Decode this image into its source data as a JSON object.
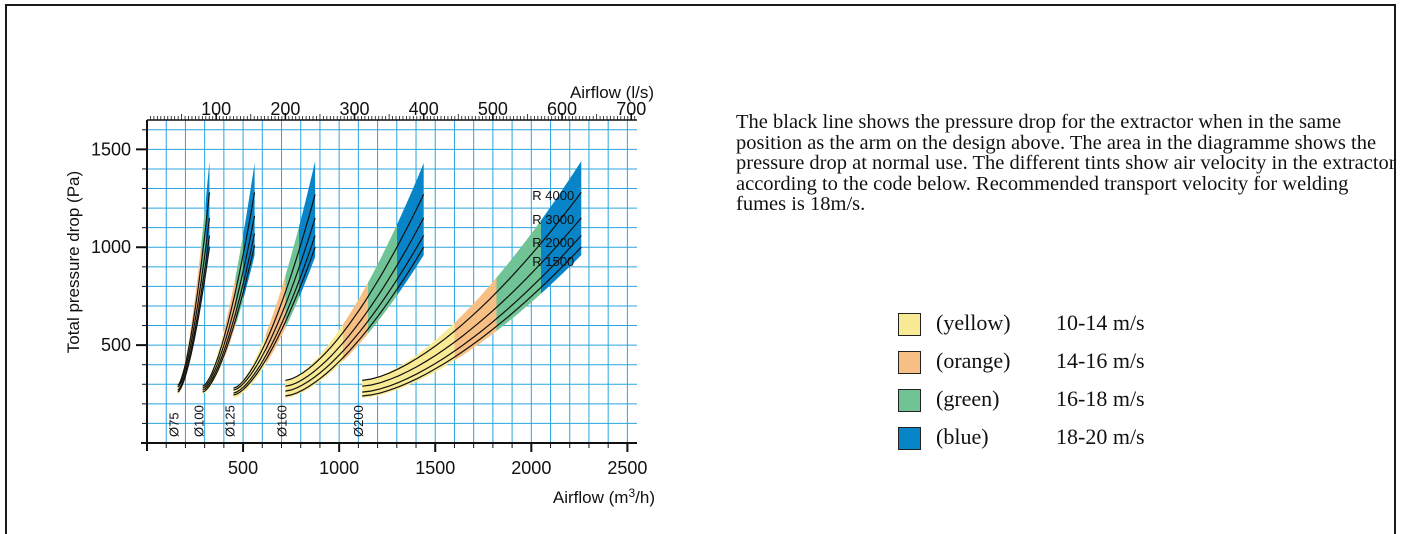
{
  "chart_data": {
    "type": "line",
    "title": "",
    "xlabel": "Airflow (m³/h)",
    "ylabel": "Total pressure drop (Pa)",
    "x2label": "Airflow (l/s)",
    "xlim": [
      0,
      2550
    ],
    "ylim": [
      0,
      1650
    ],
    "x2lim": [
      0,
      708.33
    ],
    "xticks": [
      500,
      1000,
      1500,
      2000,
      2500
    ],
    "yticks": [
      500,
      1000,
      1500
    ],
    "x2ticks": [
      100,
      200,
      300,
      400,
      500,
      600,
      700
    ],
    "grid": true,
    "curve_labels": [
      "R 4000",
      "R 3000",
      "R 2000",
      "R 1500"
    ],
    "velocity_colors": {
      "yellow": "#f9eb96",
      "orange": "#f8bf85",
      "green": "#6fc394",
      "blue": "#0885c8"
    },
    "ducts": [
      {
        "label": "Ø75",
        "x_start": 160,
        "x_end": 325,
        "band": {
          "x": [
            160,
            325
          ],
          "lower": [
            250,
            1000
          ],
          "upper": [
            300,
            1440
          ]
        },
        "color_stops": [
          {
            "x": 225,
            "color": "yellow"
          },
          {
            "x": 283,
            "color": "orange"
          },
          {
            "x": 306,
            "color": "green"
          },
          {
            "x": 325,
            "color": "blue"
          }
        ],
        "series": [
          {
            "name": "R 4000",
            "values": [
              [
                160,
                295
              ],
              [
                325,
                1280
              ]
            ]
          },
          {
            "name": "R 3000",
            "values": [
              [
                160,
                285
              ],
              [
                325,
                1150
              ]
            ]
          },
          {
            "name": "R 2000",
            "values": [
              [
                160,
                270
              ],
              [
                325,
                1060
              ]
            ]
          },
          {
            "name": "R 1500",
            "values": [
              [
                160,
                260
              ],
              [
                325,
                1000
              ]
            ]
          }
        ]
      },
      {
        "label": "Ø100",
        "x_start": 290,
        "x_end": 560,
        "band": {
          "x": [
            290,
            560
          ],
          "lower": [
            250,
            960
          ],
          "upper": [
            290,
            1430
          ]
        },
        "color_stops": [
          {
            "x": 400,
            "color": "yellow"
          },
          {
            "x": 460,
            "color": "orange"
          },
          {
            "x": 500,
            "color": "green"
          },
          {
            "x": 560,
            "color": "blue"
          }
        ],
        "series": [
          {
            "name": "R 4000",
            "values": [
              [
                290,
                290
              ],
              [
                560,
                1280
              ]
            ]
          },
          {
            "name": "R 3000",
            "values": [
              [
                290,
                280
              ],
              [
                560,
                1160
              ]
            ]
          },
          {
            "name": "R 2000",
            "values": [
              [
                290,
                270
              ],
              [
                560,
                1070
              ]
            ]
          },
          {
            "name": "R 1500",
            "values": [
              [
                290,
                260
              ],
              [
                560,
                1010
              ]
            ]
          }
        ]
      },
      {
        "label": "Ø125",
        "x_start": 450,
        "x_end": 875,
        "band": {
          "x": [
            450,
            875
          ],
          "lower": [
            230,
            950
          ],
          "upper": [
            280,
            1440
          ]
        },
        "color_stops": [
          {
            "x": 620,
            "color": "yellow"
          },
          {
            "x": 720,
            "color": "orange"
          },
          {
            "x": 790,
            "color": "green"
          },
          {
            "x": 875,
            "color": "blue"
          }
        ],
        "series": [
          {
            "name": "R 4000",
            "values": [
              [
                450,
                280
              ],
              [
                875,
                1270
              ]
            ]
          },
          {
            "name": "R 3000",
            "values": [
              [
                450,
                270
              ],
              [
                875,
                1150
              ]
            ]
          },
          {
            "name": "R 2000",
            "values": [
              [
                450,
                255
              ],
              [
                875,
                1060
              ]
            ]
          },
          {
            "name": "R 1500",
            "values": [
              [
                450,
                245
              ],
              [
                875,
                1000
              ]
            ]
          }
        ]
      },
      {
        "label": "Ø160",
        "x_start": 720,
        "x_end": 1440,
        "band": {
          "x": [
            720,
            1440
          ],
          "lower": [
            230,
            960
          ],
          "upper": [
            320,
            1430
          ]
        },
        "color_stops": [
          {
            "x": 1020,
            "color": "yellow"
          },
          {
            "x": 1150,
            "color": "orange"
          },
          {
            "x": 1300,
            "color": "green"
          },
          {
            "x": 1440,
            "color": "blue"
          }
        ],
        "series": [
          {
            "name": "R 4000",
            "values": [
              [
                720,
                320
              ],
              [
                1440,
                1270
              ]
            ]
          },
          {
            "name": "R 3000",
            "values": [
              [
                720,
                290
              ],
              [
                1440,
                1150
              ]
            ]
          },
          {
            "name": "R 2000",
            "values": [
              [
                720,
                265
              ],
              [
                1440,
                1060
              ]
            ]
          },
          {
            "name": "R 1500",
            "values": [
              [
                720,
                240
              ],
              [
                1440,
                1000
              ]
            ]
          }
        ]
      },
      {
        "label": "Ø200",
        "x_start": 1120,
        "x_end": 2260,
        "band": {
          "x": [
            1120,
            2260
          ],
          "lower": [
            230,
            960
          ],
          "upper": [
            320,
            1440
          ]
        },
        "color_stops": [
          {
            "x": 1600,
            "color": "yellow"
          },
          {
            "x": 1820,
            "color": "orange"
          },
          {
            "x": 2050,
            "color": "green"
          },
          {
            "x": 2260,
            "color": "blue"
          }
        ],
        "series": [
          {
            "name": "R 4000",
            "values": [
              [
                1120,
                320
              ],
              [
                2260,
                1280
              ]
            ]
          },
          {
            "name": "R 3000",
            "values": [
              [
                1120,
                290
              ],
              [
                2260,
                1150
              ]
            ]
          },
          {
            "name": "R 2000",
            "values": [
              [
                1120,
                260
              ],
              [
                2260,
                1060
              ]
            ]
          },
          {
            "name": "R 1500",
            "values": [
              [
                1120,
                240
              ],
              [
                2260,
                1000
              ]
            ]
          }
        ]
      }
    ]
  },
  "description": "The black line shows the pressure drop for the extractor when in the same position as the arm on the design above. The area in the diagramme shows the pressure drop at normal use. The different tints show air velocity in the extractor according to the code below. Recommended transport velocity for welding fumes is 18m/s.",
  "legend": [
    {
      "name": "(yellow)",
      "range": "10-14 m/s",
      "color": "#f9eb96"
    },
    {
      "name": "(orange)",
      "range": "14-16 m/s",
      "color": "#f8bf85"
    },
    {
      "name": "(green)",
      "range": "16-18 m/s",
      "color": "#6fc394"
    },
    {
      "name": "(blue)",
      "range": "18-20 m/s",
      "color": "#0885c8"
    }
  ]
}
